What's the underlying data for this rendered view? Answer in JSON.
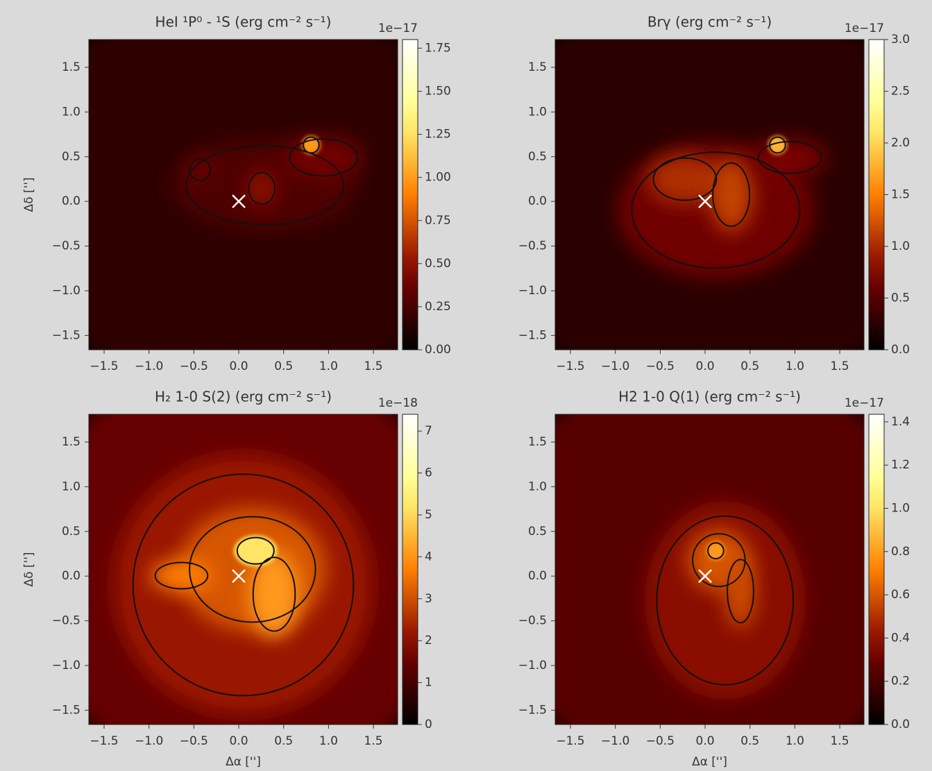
{
  "chart_data": [
    {
      "type": "heatmap",
      "title": "HeI ¹P⁰ - ¹S (erg cm⁻² s⁻¹)",
      "colormap": "afmhot",
      "ylabel": "Δδ ['']",
      "xlim": [
        -1.67,
        1.77
      ],
      "ylim": [
        -1.66,
        1.81
      ],
      "xticks": [
        {
          "value": -1.5,
          "label": "−1.5"
        },
        {
          "value": -1.0,
          "label": "−1.0"
        },
        {
          "value": -0.5,
          "label": "−0.5"
        },
        {
          "value": 0,
          "label": "0.0"
        },
        0.5,
        {
          "value": 1.0,
          "label": "1.0"
        },
        1.5
      ],
      "yticks": [
        {
          "value": -1.5,
          "label": "−1.5"
        },
        {
          "value": -1.0,
          "label": "−1.0"
        },
        {
          "value": -0.5,
          "label": "−0.5"
        },
        {
          "value": 0,
          "label": "0.0"
        },
        0.5,
        {
          "value": 1.0,
          "label": "1.0"
        },
        1.5
      ],
      "colorbar": {
        "offset_text": "1e−17",
        "lim": [
          0,
          1.8
        ],
        "ticks": [
          {
            "value": 0,
            "label": "0.00"
          },
          0.25,
          {
            "value": 0.5,
            "label": "0.50"
          },
          0.75,
          {
            "value": 1.0,
            "label": "1.00"
          },
          1.25,
          {
            "value": 1.5,
            "label": "1.50"
          },
          1.75
        ]
      }
    },
    {
      "type": "heatmap",
      "title": "Brγ (erg cm⁻² s⁻¹)",
      "colormap": "afmhot",
      "xlim": [
        -1.67,
        1.77
      ],
      "ylim": [
        -1.66,
        1.81
      ],
      "xticks": [
        {
          "value": -1.5,
          "label": "−1.5"
        },
        {
          "value": -1.0,
          "label": "−1.0"
        },
        {
          "value": -0.5,
          "label": "−0.5"
        },
        {
          "value": 0,
          "label": "0.0"
        },
        0.5,
        {
          "value": 1.0,
          "label": "1.0"
        },
        1.5
      ],
      "yticks": [
        {
          "value": -1.5,
          "label": "−1.5"
        },
        {
          "value": -1.0,
          "label": "−1.0"
        },
        {
          "value": -0.5,
          "label": "−0.5"
        },
        {
          "value": 0,
          "label": "0.0"
        },
        0.5,
        {
          "value": 1.0,
          "label": "1.0"
        },
        1.5
      ],
      "colorbar": {
        "offset_text": "1e−17",
        "lim": [
          0,
          3.0
        ],
        "ticks": [
          {
            "value": 0,
            "label": "0.0"
          },
          0.5,
          {
            "value": 1.0,
            "label": "1.0"
          },
          1.5,
          {
            "value": 2.0,
            "label": "2.0"
          },
          2.5,
          {
            "value": 3.0,
            "label": "3.0"
          }
        ]
      }
    },
    {
      "type": "heatmap",
      "title": "H₂ 1-0 S(2) (erg cm⁻² s⁻¹)",
      "colormap": "afmhot",
      "xlabel": "Δα ['']",
      "ylabel": "Δδ ['']",
      "xlim": [
        -1.67,
        1.77
      ],
      "ylim": [
        -1.66,
        1.81
      ],
      "xticks": [
        {
          "value": -1.5,
          "label": "−1.5"
        },
        {
          "value": -1.0,
          "label": "−1.0"
        },
        {
          "value": -0.5,
          "label": "−0.5"
        },
        {
          "value": 0,
          "label": "0.0"
        },
        0.5,
        {
          "value": 1.0,
          "label": "1.0"
        },
        1.5
      ],
      "yticks": [
        {
          "value": -1.5,
          "label": "−1.5"
        },
        {
          "value": -1.0,
          "label": "−1.0"
        },
        {
          "value": -0.5,
          "label": "−0.5"
        },
        {
          "value": 0,
          "label": "0.0"
        },
        0.5,
        {
          "value": 1.0,
          "label": "1.0"
        },
        1.5
      ],
      "colorbar": {
        "offset_text": "1e−18",
        "lim": [
          0,
          7.4
        ],
        "ticks": [
          0,
          1,
          2,
          3,
          4,
          5,
          6,
          7
        ]
      }
    },
    {
      "type": "heatmap",
      "title": "H2 1-0 Q(1) (erg cm⁻² s⁻¹)",
      "colormap": "afmhot",
      "xlabel": "Δα ['']",
      "xlim": [
        -1.67,
        1.77
      ],
      "ylim": [
        -1.66,
        1.81
      ],
      "xticks": [
        {
          "value": -1.5,
          "label": "−1.5"
        },
        {
          "value": -1.0,
          "label": "−1.0"
        },
        {
          "value": -0.5,
          "label": "−0.5"
        },
        {
          "value": 0,
          "label": "0.0"
        },
        0.5,
        {
          "value": 1.0,
          "label": "1.0"
        },
        1.5
      ],
      "yticks": [
        {
          "value": -1.5,
          "label": "−1.5"
        },
        {
          "value": -1.0,
          "label": "−1.0"
        },
        {
          "value": -0.5,
          "label": "−0.5"
        },
        {
          "value": 0,
          "label": "0.0"
        },
        0.5,
        {
          "value": 1.0,
          "label": "1.0"
        },
        1.5
      ],
      "colorbar": {
        "offset_text": "1e−17",
        "lim": [
          0,
          1.435
        ],
        "ticks": [
          {
            "value": 0,
            "label": "0.0"
          },
          0.2,
          0.4,
          0.6,
          0.8,
          {
            "value": 1.0,
            "label": "1.0"
          },
          1.2,
          1.4
        ]
      }
    }
  ]
}
